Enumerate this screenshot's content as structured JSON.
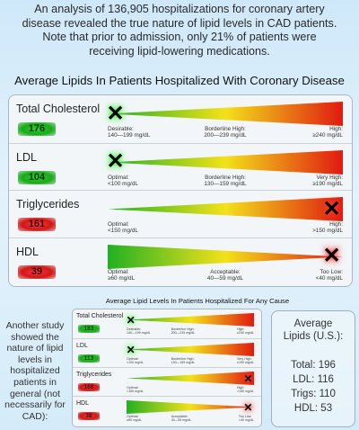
{
  "intro": {
    "line1": "An analysis of 136,905 hospitalizations for coronary artery",
    "line2": "disease revealed the true nature of lipid levels in CAD patients.",
    "line3": "Note that prior to admission, only 21% of patients were",
    "line4": "receiving lipid-lowering medications."
  },
  "main": {
    "title": "Average Lipids In Patients Hospitalized With Coronary Disease",
    "rows": [
      {
        "label": "Total Cholesterol",
        "value": "176",
        "status": "good",
        "wedge": "increasing",
        "x_position": 0.04,
        "ticks": [
          {
            "text": "Desirable:\n140—199 mg/dL"
          },
          {
            "text": "Borderline High:\n200—239 mg/dL"
          },
          {
            "text": "High:\n≥240 mg/dL"
          }
        ]
      },
      {
        "label": "LDL",
        "value": "104",
        "status": "good",
        "wedge": "increasing",
        "x_position": 0.04,
        "ticks": [
          {
            "text": "Optimal:\n<100 mg/dL"
          },
          {
            "text": "Borderline High:\n130—159 mg/dL"
          },
          {
            "text": "Very High:\n≥190 mg/dL"
          }
        ]
      },
      {
        "label": "Triglycerides",
        "value": "161",
        "status": "bad",
        "wedge": "increasing",
        "x_position": 0.96,
        "ticks": [
          {
            "text": "Optimal:\n<150 mg/dL"
          },
          {
            "text": ""
          },
          {
            "text": "High:\n>150 mg/dL"
          }
        ]
      },
      {
        "label": "HDL",
        "value": "39",
        "status": "bad",
        "wedge": "decreasing",
        "x_position": 0.96,
        "ticks": [
          {
            "text": "Optimal:\n≥60 mg/dL"
          },
          {
            "text": "Acceptable:\n40—59 mg/dL"
          },
          {
            "text": "Too Low:\n<40 mg/dL"
          }
        ]
      }
    ]
  },
  "mini": {
    "title": "Average Lipid Levels In Patients Hospitalized For Any Cause",
    "rows": [
      {
        "label": "Total Cholesterol",
        "value": "183",
        "status": "good",
        "wedge": "increasing",
        "x_position": 0.04,
        "ticks": [
          {
            "text": "Desirable:\n140—199 mg/dL"
          },
          {
            "text": "Borderline High:\n200—239 mg/dL"
          },
          {
            "text": "High:\n≥240 mg/dL"
          }
        ]
      },
      {
        "label": "LDL",
        "value": "113",
        "status": "good",
        "wedge": "increasing",
        "x_position": 0.04,
        "ticks": [
          {
            "text": "Optimal:\n<100 mg/dL"
          },
          {
            "text": "Borderline High:\n130—159 mg/dL"
          },
          {
            "text": "Very High:\n≥190 mg/dL"
          }
        ]
      },
      {
        "label": "Triglycerides",
        "value": "166",
        "status": "bad",
        "wedge": "increasing",
        "x_position": 0.96,
        "ticks": [
          {
            "text": "Optimal:\n<150 mg/dL"
          },
          {
            "text": ""
          },
          {
            "text": "High:\n>150 mg/dL"
          }
        ]
      },
      {
        "label": "HDL",
        "value": "38",
        "status": "bad",
        "wedge": "decreasing",
        "x_position": 0.96,
        "ticks": [
          {
            "text": "Optimal:\n≥60 mg/dL"
          },
          {
            "text": "Acceptable:\n40—59 mg/dL"
          },
          {
            "text": "Too Low:\n<40 mg/dL"
          }
        ]
      }
    ]
  },
  "side_note": "Another study showed the nature of lipid levels in hospitalized patients in general (not necessarily for CAD):",
  "averages": {
    "title_line1": "Average",
    "title_line2": "Lipids (U.S.):",
    "total": "Total: 196",
    "ldl": "LDL: 116",
    "trigs": "Trigs: 110",
    "hdl": "HDL: 53"
  },
  "icons": {
    "marker": "x-mark-icon"
  },
  "colors": {
    "good": "#1db51d",
    "bad": "#d11616",
    "wedge_green": "#22b022",
    "wedge_yellow": "#f2e21a",
    "wedge_red": "#e01a10"
  }
}
